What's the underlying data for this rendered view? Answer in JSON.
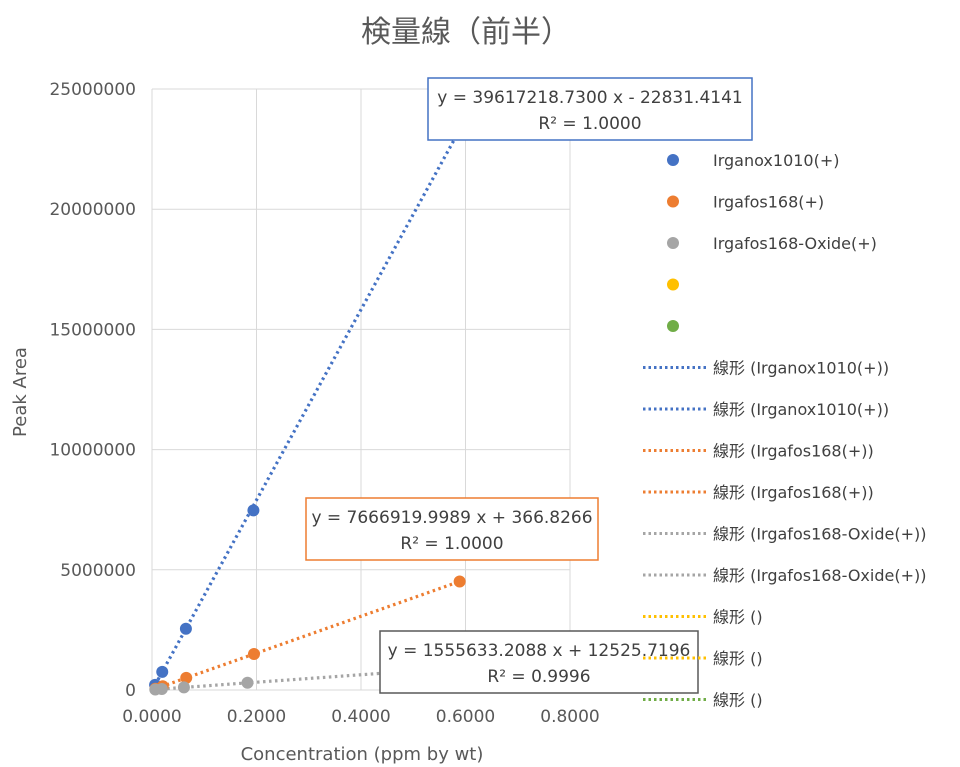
{
  "chart_data": {
    "type": "scatter",
    "title": "検量線（前半）",
    "xlabel": "Concentration (ppm by wt)",
    "ylabel": "Peak Area",
    "xlim": [
      0,
      0.8
    ],
    "ylim": [
      0,
      25000000
    ],
    "xticks": [
      "0.0000",
      "0.2000",
      "0.4000",
      "0.6000",
      "0.8000"
    ],
    "yticks": [
      "0",
      "5000000",
      "10000000",
      "15000000",
      "20000000",
      "25000000"
    ],
    "grid": true,
    "legend": "right",
    "series": [
      {
        "name": "Irganox1010(+)",
        "color": "#4472C4",
        "x": [
          0.0059,
          0.0196,
          0.0649,
          0.1941,
          0.5867
        ],
        "y": [
          211000,
          754000,
          2550000,
          7470000,
          23240000
        ],
        "trendline": {
          "equation": "y = 39617218.7300 x - 22831.4141",
          "r2": "R² = 1.0000",
          "slope": 39617218.73,
          "intercept": -22831.4141
        }
      },
      {
        "name": "Irgafos168(+)",
        "color": "#ED7D31",
        "x": [
          0.0066,
          0.0206,
          0.0655,
          0.1952,
          0.5888
        ],
        "y": [
          51000,
          158000,
          503000,
          1497000,
          4515000
        ],
        "trendline": {
          "equation": "y = 7666919.9989 x + 366.8266",
          "r2": "R² = 1.0000",
          "slope": 7666919.9989,
          "intercept": 366.8266
        }
      },
      {
        "name": "Irgafos168-Oxide(+)",
        "color": "#A5A5A5",
        "x": [
          0.0063,
          0.0188,
          0.0611,
          0.1828,
          0.5505
        ],
        "y": [
          23000,
          42000,
          107000,
          300000,
          870000
        ],
        "trendline": {
          "equation": "y = 1555633.2088 x + 12525.7196",
          "r2": "R² = 0.9996",
          "slope": 1555633.2088,
          "intercept": 12525.7196
        }
      },
      {
        "name": "",
        "color": "#FFC000",
        "x": [],
        "y": []
      },
      {
        "name": "",
        "color": "#70AD47",
        "x": [],
        "y": []
      }
    ],
    "legend_entries": [
      {
        "kind": "marker",
        "label": "Irganox1010(+)",
        "color": "#4472C4"
      },
      {
        "kind": "marker",
        "label": "Irgafos168(+)",
        "color": "#ED7D31"
      },
      {
        "kind": "marker",
        "label": "Irgafos168-Oxide(+)",
        "color": "#A5A5A5"
      },
      {
        "kind": "marker",
        "label": "",
        "color": "#FFC000"
      },
      {
        "kind": "marker",
        "label": "",
        "color": "#70AD47"
      },
      {
        "kind": "line",
        "label": "線形 (Irganox1010(+))",
        "color": "#4472C4"
      },
      {
        "kind": "line",
        "label": "線形 (Irganox1010(+))",
        "color": "#4472C4"
      },
      {
        "kind": "line",
        "label": "線形 (Irgafos168(+))",
        "color": "#ED7D31"
      },
      {
        "kind": "line",
        "label": "線形 (Irgafos168(+))",
        "color": "#ED7D31"
      },
      {
        "kind": "line",
        "label": "線形 (Irgafos168-Oxide(+))",
        "color": "#A5A5A5"
      },
      {
        "kind": "line",
        "label": "線形 (Irgafos168-Oxide(+))",
        "color": "#A5A5A5"
      },
      {
        "kind": "line",
        "label": "線形 ()",
        "color": "#FFC000"
      },
      {
        "kind": "line",
        "label": "線形 ()",
        "color": "#FFC000"
      },
      {
        "kind": "line",
        "label": "線形 ()",
        "color": "#70AD47"
      }
    ]
  }
}
